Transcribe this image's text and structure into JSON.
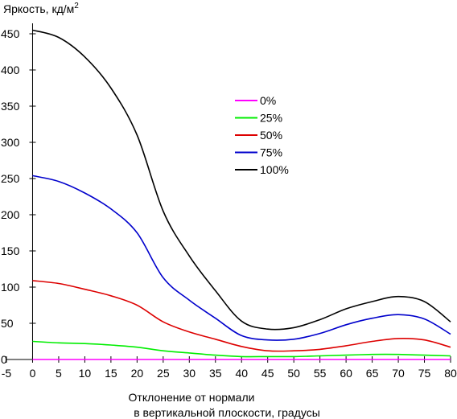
{
  "chart_data": {
    "type": "line",
    "title": "",
    "ylabel": "Яркость, кд/м",
    "ylabel_sup": "2",
    "xlabel_line1": "Отклонение от нормали",
    "xlabel_line2": "в вертикальной плоскости, градусы",
    "xlim": [
      -5,
      80
    ],
    "ylim": [
      0,
      460
    ],
    "xticks": [
      -5,
      0,
      5,
      10,
      15,
      20,
      25,
      30,
      35,
      40,
      45,
      50,
      55,
      60,
      65,
      70,
      75,
      80
    ],
    "yticks": [
      0,
      50,
      100,
      150,
      200,
      250,
      300,
      350,
      400,
      450
    ],
    "grid": false,
    "legend_position": "center-right",
    "x": [
      0,
      5,
      10,
      15,
      20,
      25,
      30,
      35,
      40,
      45,
      50,
      55,
      60,
      65,
      70,
      75,
      80
    ],
    "series": [
      {
        "name": "0%",
        "color": "#ff00ff",
        "values": [
          0,
          0,
          0,
          0,
          0,
          0,
          0,
          0,
          0,
          0,
          0,
          0,
          0,
          0,
          0,
          0,
          0
        ]
      },
      {
        "name": "25%",
        "color": "#00ee00",
        "values": [
          25,
          23,
          22,
          20,
          17,
          12,
          9,
          6,
          4,
          4,
          4,
          5,
          6,
          7,
          7,
          6,
          5
        ]
      },
      {
        "name": "50%",
        "color": "#dd0000",
        "values": [
          109,
          105,
          97,
          88,
          75,
          52,
          38,
          28,
          18,
          12,
          12,
          14,
          19,
          25,
          29,
          27,
          17
        ]
      },
      {
        "name": "75%",
        "color": "#0000cc",
        "values": [
          254,
          246,
          230,
          208,
          175,
          113,
          82,
          57,
          33,
          27,
          28,
          36,
          48,
          57,
          62,
          56,
          35
        ]
      },
      {
        "name": "100%",
        "color": "#000000",
        "values": [
          455,
          445,
          418,
          375,
          310,
          205,
          143,
          95,
          53,
          42,
          44,
          55,
          70,
          80,
          87,
          80,
          52
        ]
      }
    ]
  }
}
